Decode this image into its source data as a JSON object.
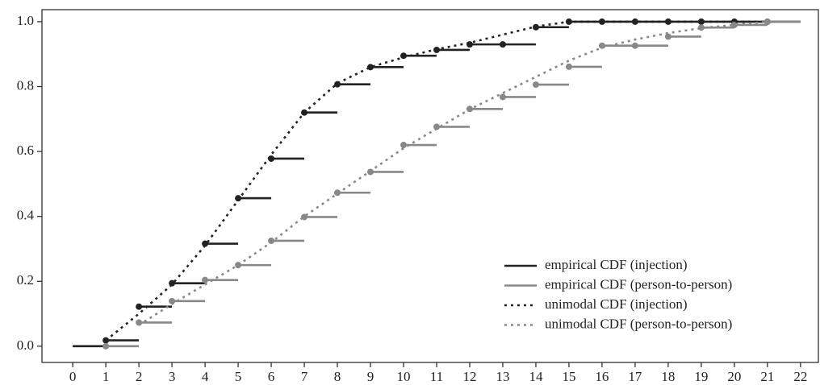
{
  "chart_data": {
    "type": "line",
    "xlim": [
      -0.93,
      22.54
    ],
    "ylim": [
      -0.05,
      1.037
    ],
    "xticks": [
      0,
      1,
      2,
      3,
      4,
      5,
      6,
      7,
      8,
      9,
      10,
      11,
      12,
      13,
      14,
      15,
      16,
      17,
      18,
      19,
      20,
      21,
      22
    ],
    "yticks": [
      {
        "value": 0,
        "label": "0.0"
      },
      {
        "value": 0.2,
        "label": "0.2"
      },
      {
        "value": 0.4,
        "label": "0.4"
      },
      {
        "value": 0.6,
        "label": "0.6"
      },
      {
        "value": 0.8,
        "label": "0.8"
      },
      {
        "value": 1,
        "label": "1.0"
      }
    ],
    "legend": "lower right",
    "series": [
      {
        "name": "empirical CDF (injection)",
        "color": "#222222",
        "style": "step",
        "x": [
          0,
          1,
          2,
          3,
          4,
          5,
          6,
          7,
          8,
          9,
          10,
          11,
          12,
          13,
          14,
          15,
          16,
          17,
          18,
          19,
          20,
          21
        ],
        "values": [
          0,
          0.018,
          0.122,
          0.194,
          0.316,
          0.456,
          0.578,
          0.72,
          0.807,
          0.86,
          0.895,
          0.913,
          0.93,
          0.93,
          0.983,
          1,
          1,
          1,
          1,
          1,
          1,
          1
        ]
      },
      {
        "name": "empirical CDF (person-to-person)",
        "color": "#888888",
        "style": "step",
        "x": [
          1,
          2,
          3,
          4,
          5,
          6,
          7,
          8,
          9,
          10,
          11,
          12,
          13,
          14,
          15,
          16,
          17,
          18,
          19,
          20,
          21
        ],
        "values": [
          0,
          0.073,
          0.139,
          0.204,
          0.25,
          0.325,
          0.398,
          0.473,
          0.537,
          0.62,
          0.676,
          0.731,
          0.768,
          0.806,
          0.861,
          0.926,
          0.926,
          0.954,
          0.982,
          0.99,
          1
        ]
      },
      {
        "name": "unimodal CDF (injection)",
        "color": "#222222",
        "style": "dotted",
        "x": [
          1,
          2,
          3,
          4,
          5,
          6,
          7,
          8,
          9,
          10,
          11,
          12,
          13,
          14,
          15,
          16,
          17,
          18,
          19,
          20,
          21
        ],
        "values": [
          0.018,
          0.1,
          0.19,
          0.31,
          0.45,
          0.59,
          0.72,
          0.81,
          0.86,
          0.89,
          0.915,
          0.935,
          0.96,
          0.985,
          1,
          1,
          1,
          1,
          1,
          1,
          1
        ]
      },
      {
        "name": "unimodal CDF (person-to-person)",
        "color": "#888888",
        "style": "dotted",
        "x": [
          2,
          3,
          4,
          5,
          6,
          7,
          8,
          9,
          10,
          11,
          12,
          13,
          14,
          15,
          16,
          17,
          18,
          19,
          20,
          21
        ],
        "values": [
          0.065,
          0.13,
          0.19,
          0.25,
          0.32,
          0.4,
          0.47,
          0.54,
          0.61,
          0.67,
          0.73,
          0.78,
          0.83,
          0.88,
          0.92,
          0.945,
          0.965,
          0.98,
          0.99,
          1
        ]
      }
    ]
  }
}
